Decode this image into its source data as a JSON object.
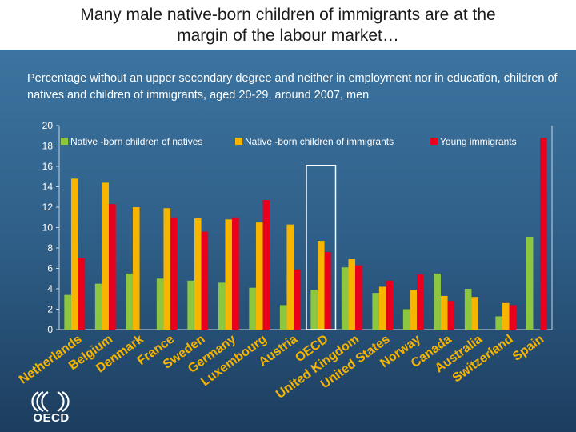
{
  "header": {
    "title": "Many male native-born children of immigrants are at the\nmargin of the labour market…",
    "subtitle": "Percentage without an upper secondary degree and neither in employment nor in education, children of natives and children of immigrants, aged 20-29, around 2007, men"
  },
  "brand": {
    "logo_text": "OECD"
  },
  "colors": {
    "natives": "#8dc63f",
    "children_of_immigrants": "#f7b500",
    "young_immigrants": "#e8001c",
    "highlight": "#ffffff"
  },
  "chart_data": {
    "type": "bar",
    "categories": [
      "Netherlands",
      "Belgium",
      "Denmark",
      "France",
      "Sweden",
      "Germany",
      "Luxembourg",
      "Austria",
      "OECD",
      "United Kingdom",
      "United States",
      "Norway",
      "Canada",
      "Australia",
      "Switzerland",
      "Spain"
    ],
    "series": [
      {
        "name": "Native -born children of natives",
        "values": [
          3.4,
          4.5,
          5.5,
          5.0,
          4.8,
          4.6,
          4.1,
          2.4,
          3.9,
          6.1,
          3.6,
          2.0,
          5.5,
          4.0,
          1.3,
          9.1
        ]
      },
      {
        "name": "Native -born children of immigrants",
        "values": [
          14.8,
          14.4,
          12.0,
          11.9,
          10.9,
          10.8,
          10.5,
          10.3,
          8.7,
          6.9,
          4.2,
          3.9,
          3.3,
          3.2,
          2.6,
          null
        ]
      },
      {
        "name": "Young immigrants",
        "values": [
          7.0,
          12.3,
          null,
          11.0,
          9.6,
          11.0,
          12.7,
          5.9,
          7.6,
          6.3,
          4.8,
          5.4,
          2.8,
          null,
          2.4,
          18.8
        ]
      }
    ],
    "ylim": [
      0,
      20
    ],
    "yticks": [
      0,
      2,
      4,
      6,
      8,
      10,
      12,
      14,
      16,
      18,
      20
    ],
    "highlight_category": "OECD",
    "legend_position": "top",
    "grid": false,
    "xlabel": "",
    "ylabel": ""
  }
}
